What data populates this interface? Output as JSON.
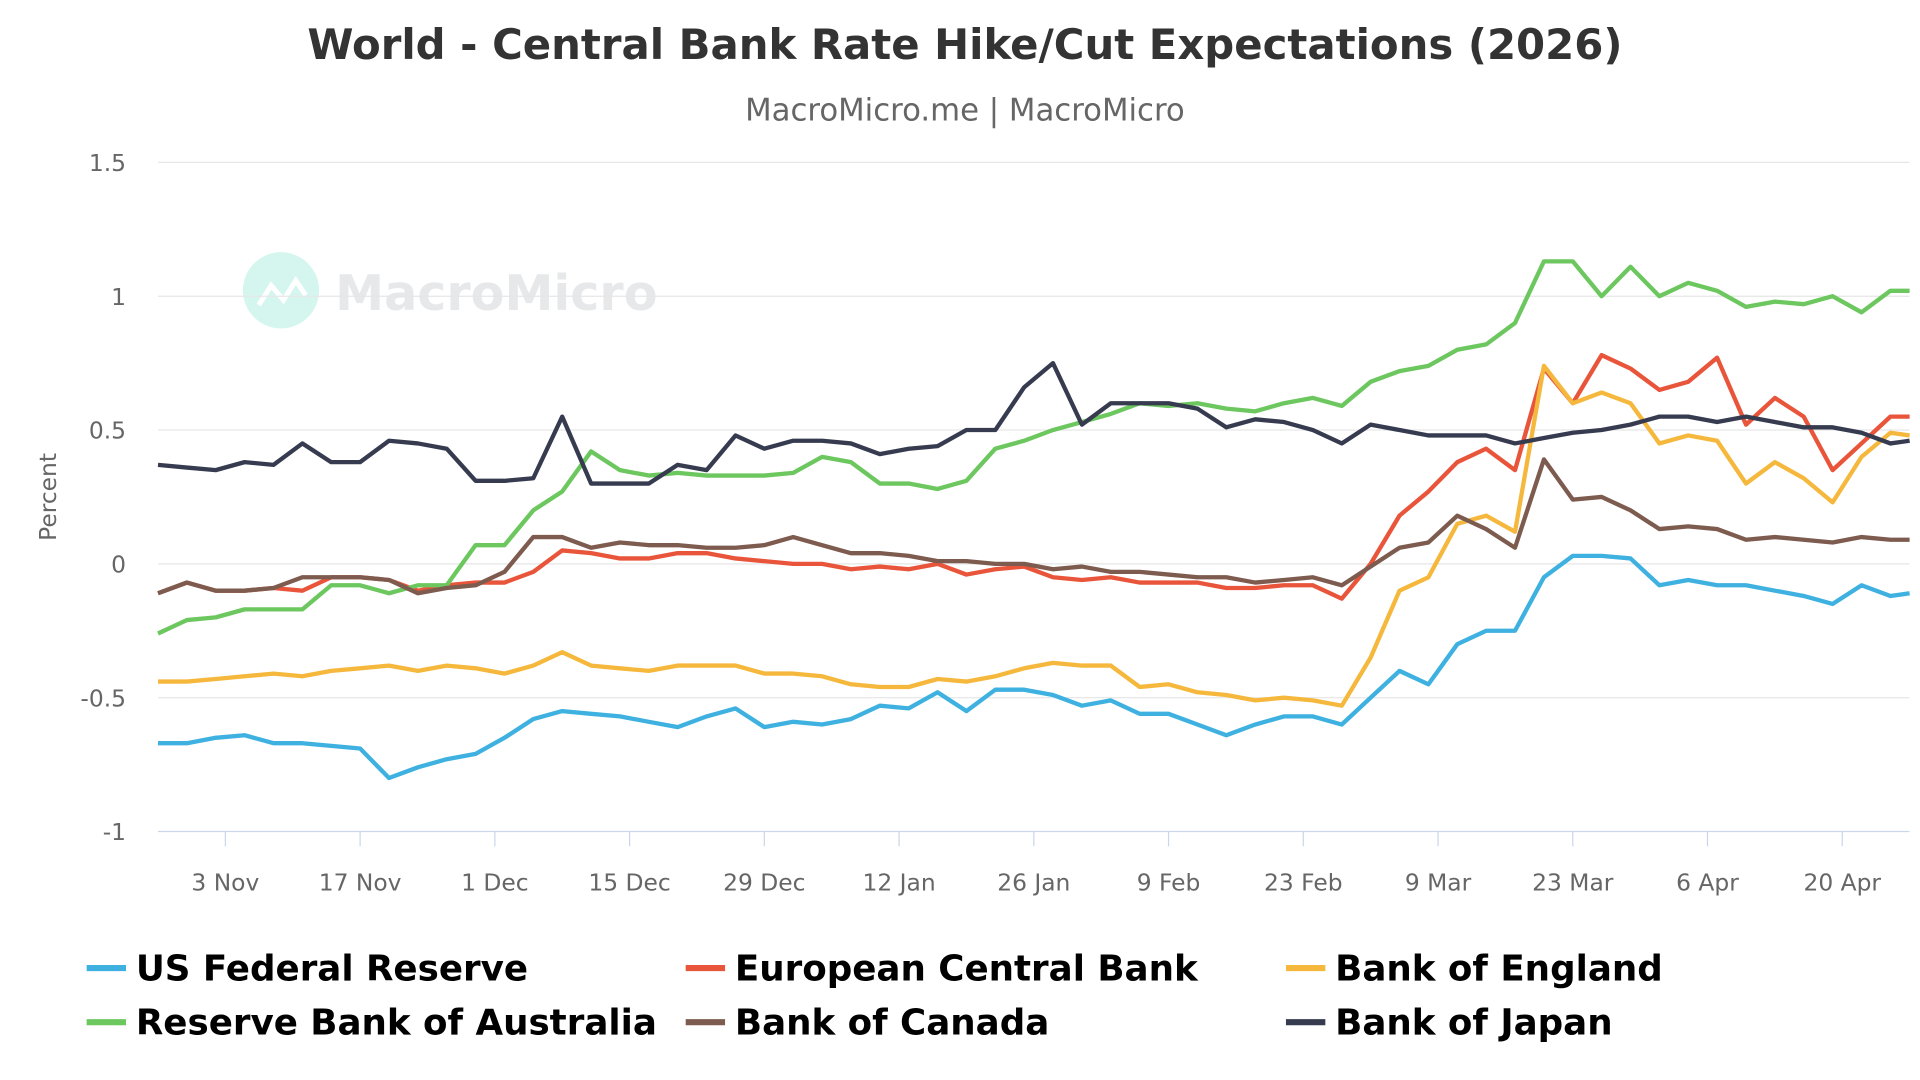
{
  "chart_data": {
    "type": "line",
    "title": "World - Central Bank Rate Hike/Cut Expectations (2026)",
    "subtitle": "MacroMicro.me | MacroMicro",
    "watermark": "MacroMicro",
    "ylabel": "Percent",
    "xlabel": "",
    "ylim": [
      -1,
      1.5
    ],
    "yticks": [
      1.5,
      1,
      0.5,
      0,
      -0.5,
      -1
    ],
    "ytick_labels": [
      "1.5",
      "1",
      "0.5",
      "0",
      "-0.5",
      "-1"
    ],
    "xlim": [
      "2025-10-27",
      "2026-04-27"
    ],
    "xticks": [
      {
        "date": "2025-11-03",
        "label": "3 Nov"
      },
      {
        "date": "2025-11-17",
        "label": "17 Nov"
      },
      {
        "date": "2025-12-01",
        "label": "1 Dec"
      },
      {
        "date": "2025-12-15",
        "label": "15 Dec"
      },
      {
        "date": "2025-12-29",
        "label": "29 Dec"
      },
      {
        "date": "2026-01-12",
        "label": "12 Jan"
      },
      {
        "date": "2026-01-26",
        "label": "26 Jan"
      },
      {
        "date": "2026-02-09",
        "label": "9 Feb"
      },
      {
        "date": "2026-02-23",
        "label": "23 Feb"
      },
      {
        "date": "2026-03-09",
        "label": "9 Mar"
      },
      {
        "date": "2026-03-23",
        "label": "23 Mar"
      },
      {
        "date": "2026-04-06",
        "label": "6 Apr"
      },
      {
        "date": "2026-04-20",
        "label": "20 Apr"
      }
    ],
    "grid": true,
    "legend_position": "bottom",
    "x": [
      "2025-10-27",
      "2025-10-30",
      "2025-11-02",
      "2025-11-05",
      "2025-11-08",
      "2025-11-11",
      "2025-11-14",
      "2025-11-17",
      "2025-11-20",
      "2025-11-23",
      "2025-11-26",
      "2025-11-29",
      "2025-12-02",
      "2025-12-05",
      "2025-12-08",
      "2025-12-11",
      "2025-12-14",
      "2025-12-17",
      "2025-12-20",
      "2025-12-23",
      "2025-12-26",
      "2025-12-29",
      "2026-01-01",
      "2026-01-04",
      "2026-01-07",
      "2026-01-10",
      "2026-01-13",
      "2026-01-16",
      "2026-01-19",
      "2026-01-22",
      "2026-01-25",
      "2026-01-28",
      "2026-01-31",
      "2026-02-03",
      "2026-02-06",
      "2026-02-09",
      "2026-02-12",
      "2026-02-15",
      "2026-02-18",
      "2026-02-21",
      "2026-02-24",
      "2026-02-27",
      "2026-03-02",
      "2026-03-05",
      "2026-03-08",
      "2026-03-11",
      "2026-03-14",
      "2026-03-17",
      "2026-03-20",
      "2026-03-23",
      "2026-03-26",
      "2026-03-29",
      "2026-04-01",
      "2026-04-04",
      "2026-04-07",
      "2026-04-10",
      "2026-04-13",
      "2026-04-16",
      "2026-04-19",
      "2026-04-22",
      "2026-04-25",
      "2026-04-27"
    ],
    "series": [
      {
        "name": "US Federal Reserve",
        "color": "#3eb1e0",
        "values": [
          -0.67,
          -0.67,
          -0.65,
          -0.64,
          -0.67,
          -0.67,
          -0.68,
          -0.69,
          -0.8,
          -0.76,
          -0.73,
          -0.71,
          -0.65,
          -0.58,
          -0.55,
          -0.56,
          -0.57,
          -0.59,
          -0.61,
          -0.57,
          -0.54,
          -0.61,
          -0.59,
          -0.6,
          -0.58,
          -0.53,
          -0.54,
          -0.48,
          -0.55,
          -0.47,
          -0.47,
          -0.49,
          -0.53,
          -0.51,
          -0.56,
          -0.56,
          -0.6,
          -0.64,
          -0.6,
          -0.57,
          -0.57,
          -0.6,
          -0.5,
          -0.4,
          -0.45,
          -0.3,
          -0.25,
          -0.25,
          -0.05,
          0.03,
          0.03,
          0.02,
          -0.08,
          -0.06,
          -0.08,
          -0.08,
          -0.1,
          -0.12,
          -0.15,
          -0.08,
          -0.12,
          -0.11
        ]
      },
      {
        "name": "European Central Bank",
        "color": "#e9553b",
        "values": [
          -0.11,
          -0.07,
          -0.1,
          -0.1,
          -0.09,
          -0.1,
          -0.05,
          -0.05,
          -0.06,
          -0.1,
          -0.08,
          -0.07,
          -0.07,
          -0.03,
          0.05,
          0.04,
          0.02,
          0.02,
          0.04,
          0.04,
          0.02,
          0.01,
          0.0,
          0.0,
          -0.02,
          -0.01,
          -0.02,
          0.0,
          -0.04,
          -0.02,
          -0.01,
          -0.05,
          -0.06,
          -0.05,
          -0.07,
          -0.07,
          -0.07,
          -0.09,
          -0.09,
          -0.08,
          -0.08,
          -0.13,
          0.0,
          0.18,
          0.27,
          0.38,
          0.43,
          0.35,
          0.73,
          0.6,
          0.78,
          0.73,
          0.65,
          0.68,
          0.77,
          0.52,
          0.62,
          0.55,
          0.35,
          0.45,
          0.55,
          0.55
        ]
      },
      {
        "name": "Bank of England",
        "color": "#f5b83d",
        "values": [
          -0.44,
          -0.44,
          -0.43,
          -0.42,
          -0.41,
          -0.42,
          -0.4,
          -0.39,
          -0.38,
          -0.4,
          -0.38,
          -0.39,
          -0.41,
          -0.38,
          -0.33,
          -0.38,
          -0.39,
          -0.4,
          -0.38,
          -0.38,
          -0.38,
          -0.41,
          -0.41,
          -0.42,
          -0.45,
          -0.46,
          -0.46,
          -0.43,
          -0.44,
          -0.42,
          -0.39,
          -0.37,
          -0.38,
          -0.38,
          -0.46,
          -0.45,
          -0.48,
          -0.49,
          -0.51,
          -0.5,
          -0.51,
          -0.53,
          -0.35,
          -0.1,
          -0.05,
          0.15,
          0.18,
          0.12,
          0.74,
          0.6,
          0.64,
          0.6,
          0.45,
          0.48,
          0.46,
          0.3,
          0.38,
          0.32,
          0.23,
          0.4,
          0.49,
          0.48
        ]
      },
      {
        "name": "Reserve Bank of Australia",
        "color": "#6cc75f",
        "values": [
          -0.26,
          -0.21,
          -0.2,
          -0.17,
          -0.17,
          -0.17,
          -0.08,
          -0.08,
          -0.11,
          -0.08,
          -0.08,
          0.07,
          0.07,
          0.2,
          0.27,
          0.42,
          0.35,
          0.33,
          0.34,
          0.33,
          0.33,
          0.33,
          0.34,
          0.4,
          0.38,
          0.3,
          0.3,
          0.28,
          0.31,
          0.43,
          0.46,
          0.5,
          0.53,
          0.56,
          0.6,
          0.59,
          0.6,
          0.58,
          0.57,
          0.6,
          0.62,
          0.59,
          0.68,
          0.72,
          0.74,
          0.8,
          0.82,
          0.9,
          1.13,
          1.13,
          1.0,
          1.11,
          1.0,
          1.05,
          1.02,
          0.96,
          0.98,
          0.97,
          1.0,
          0.94,
          1.02,
          1.02
        ]
      },
      {
        "name": "Bank of Canada",
        "color": "#7d5b4e",
        "values": [
          -0.11,
          -0.07,
          -0.1,
          -0.1,
          -0.09,
          -0.05,
          -0.05,
          -0.05,
          -0.06,
          -0.11,
          -0.09,
          -0.08,
          -0.03,
          0.1,
          0.1,
          0.06,
          0.08,
          0.07,
          0.07,
          0.06,
          0.06,
          0.07,
          0.1,
          0.07,
          0.04,
          0.04,
          0.03,
          0.01,
          0.01,
          0.0,
          0.0,
          -0.02,
          -0.01,
          -0.03,
          -0.03,
          -0.04,
          -0.05,
          -0.05,
          -0.07,
          -0.06,
          -0.05,
          -0.08,
          -0.01,
          0.06,
          0.08,
          0.18,
          0.13,
          0.06,
          0.39,
          0.24,
          0.25,
          0.2,
          0.13,
          0.14,
          0.13,
          0.09,
          0.1,
          0.09,
          0.08,
          0.1,
          0.09,
          0.09
        ]
      },
      {
        "name": "Bank of Japan",
        "color": "#363b4f",
        "values": [
          0.37,
          0.36,
          0.35,
          0.38,
          0.37,
          0.45,
          0.38,
          0.38,
          0.46,
          0.45,
          0.43,
          0.31,
          0.31,
          0.32,
          0.55,
          0.3,
          0.3,
          0.3,
          0.37,
          0.35,
          0.48,
          0.43,
          0.46,
          0.46,
          0.45,
          0.41,
          0.43,
          0.44,
          0.5,
          0.5,
          0.66,
          0.75,
          0.52,
          0.6,
          0.6,
          0.6,
          0.58,
          0.51,
          0.54,
          0.53,
          0.5,
          0.45,
          0.52,
          0.5,
          0.48,
          0.48,
          0.48,
          0.45,
          0.47,
          0.49,
          0.5,
          0.52,
          0.55,
          0.55,
          0.53,
          0.55,
          0.53,
          0.51,
          0.51,
          0.49,
          0.45,
          0.46
        ]
      }
    ]
  }
}
